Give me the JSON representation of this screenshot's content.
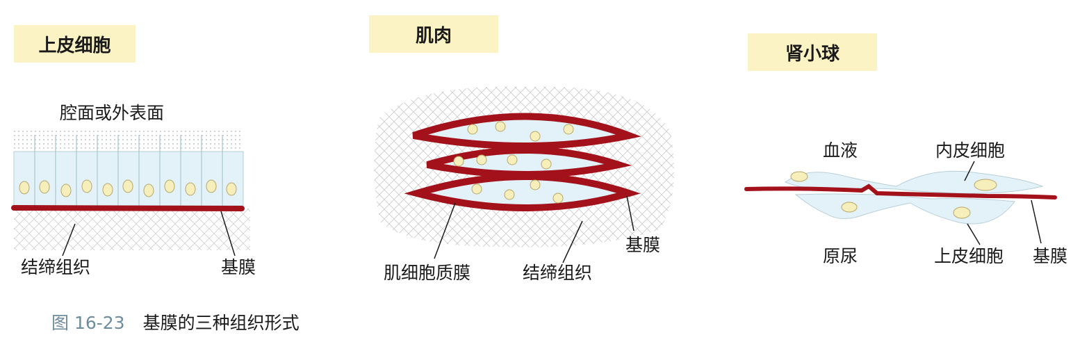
{
  "panels": [
    {
      "title": "上皮细胞",
      "labels": {
        "surface": "腔面或外表面",
        "connective": "结缔组织",
        "membrane": "基膜"
      }
    },
    {
      "title": "肌肉",
      "labels": {
        "cell_membrane": "肌细胞质膜",
        "connective": "结缔组织",
        "membrane": "基膜"
      }
    },
    {
      "title": "肾小球",
      "labels": {
        "blood": "血液",
        "endothelium": "内皮细胞",
        "urine": "原尿",
        "epithelium": "上皮细胞",
        "membrane": "基膜"
      }
    }
  ],
  "caption": {
    "number": "图 16-23",
    "text": "基膜的三种组织形式"
  },
  "colors": {
    "membrane": "#a3121b",
    "title_bg": "#fbf3c4",
    "cell_fill": "#e3f2f8",
    "nucleus": "#f6efbb",
    "caption_number": "#6d8c9c"
  }
}
